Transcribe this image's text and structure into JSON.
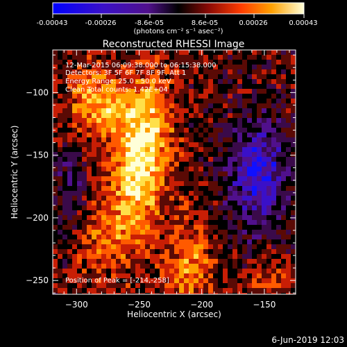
{
  "colorbar": {
    "tick_labels": [
      "-0.00043",
      "-0.00026",
      "-8.6e-05",
      "8.6e-05",
      "0.00026",
      "0.00043"
    ],
    "units": "(photons cm⁻² s⁻¹ asec⁻²)"
  },
  "title": "Reconstructed RHESSI Image",
  "info": {
    "time_range": "12-Mar-2015 06:09:38.000 to 06:15:38.000",
    "detectors": "Detectors: 3F 5F 6F 7F 8F 9F, Att 1",
    "energy": "Energy Range: 25.0 - 50.0 keV",
    "clean": "Clean     Total counts: 1.42E+04",
    "peak": "Position of Peak = [-214,-258]"
  },
  "axes": {
    "xlabel": "Heliocentric X (arcsec)",
    "ylabel": "Heliocentric Y (arcsec)",
    "xticks": [
      -300,
      -250,
      -200,
      -150
    ],
    "yticks": [
      -100,
      -150,
      -200,
      -250
    ],
    "xlim": [
      -319,
      -125
    ],
    "ylim": [
      -261,
      -66
    ]
  },
  "footer_date": "6-Jun-2019 12:03",
  "colors": {
    "palette": [
      "#1010ff",
      "#3a10c8",
      "#50108c",
      "#3a0a4a",
      "#000000",
      "#5a0a05",
      "#c81e05",
      "#ff5a00",
      "#ffa000",
      "#ffe04a",
      "#ffffd8"
    ]
  }
}
